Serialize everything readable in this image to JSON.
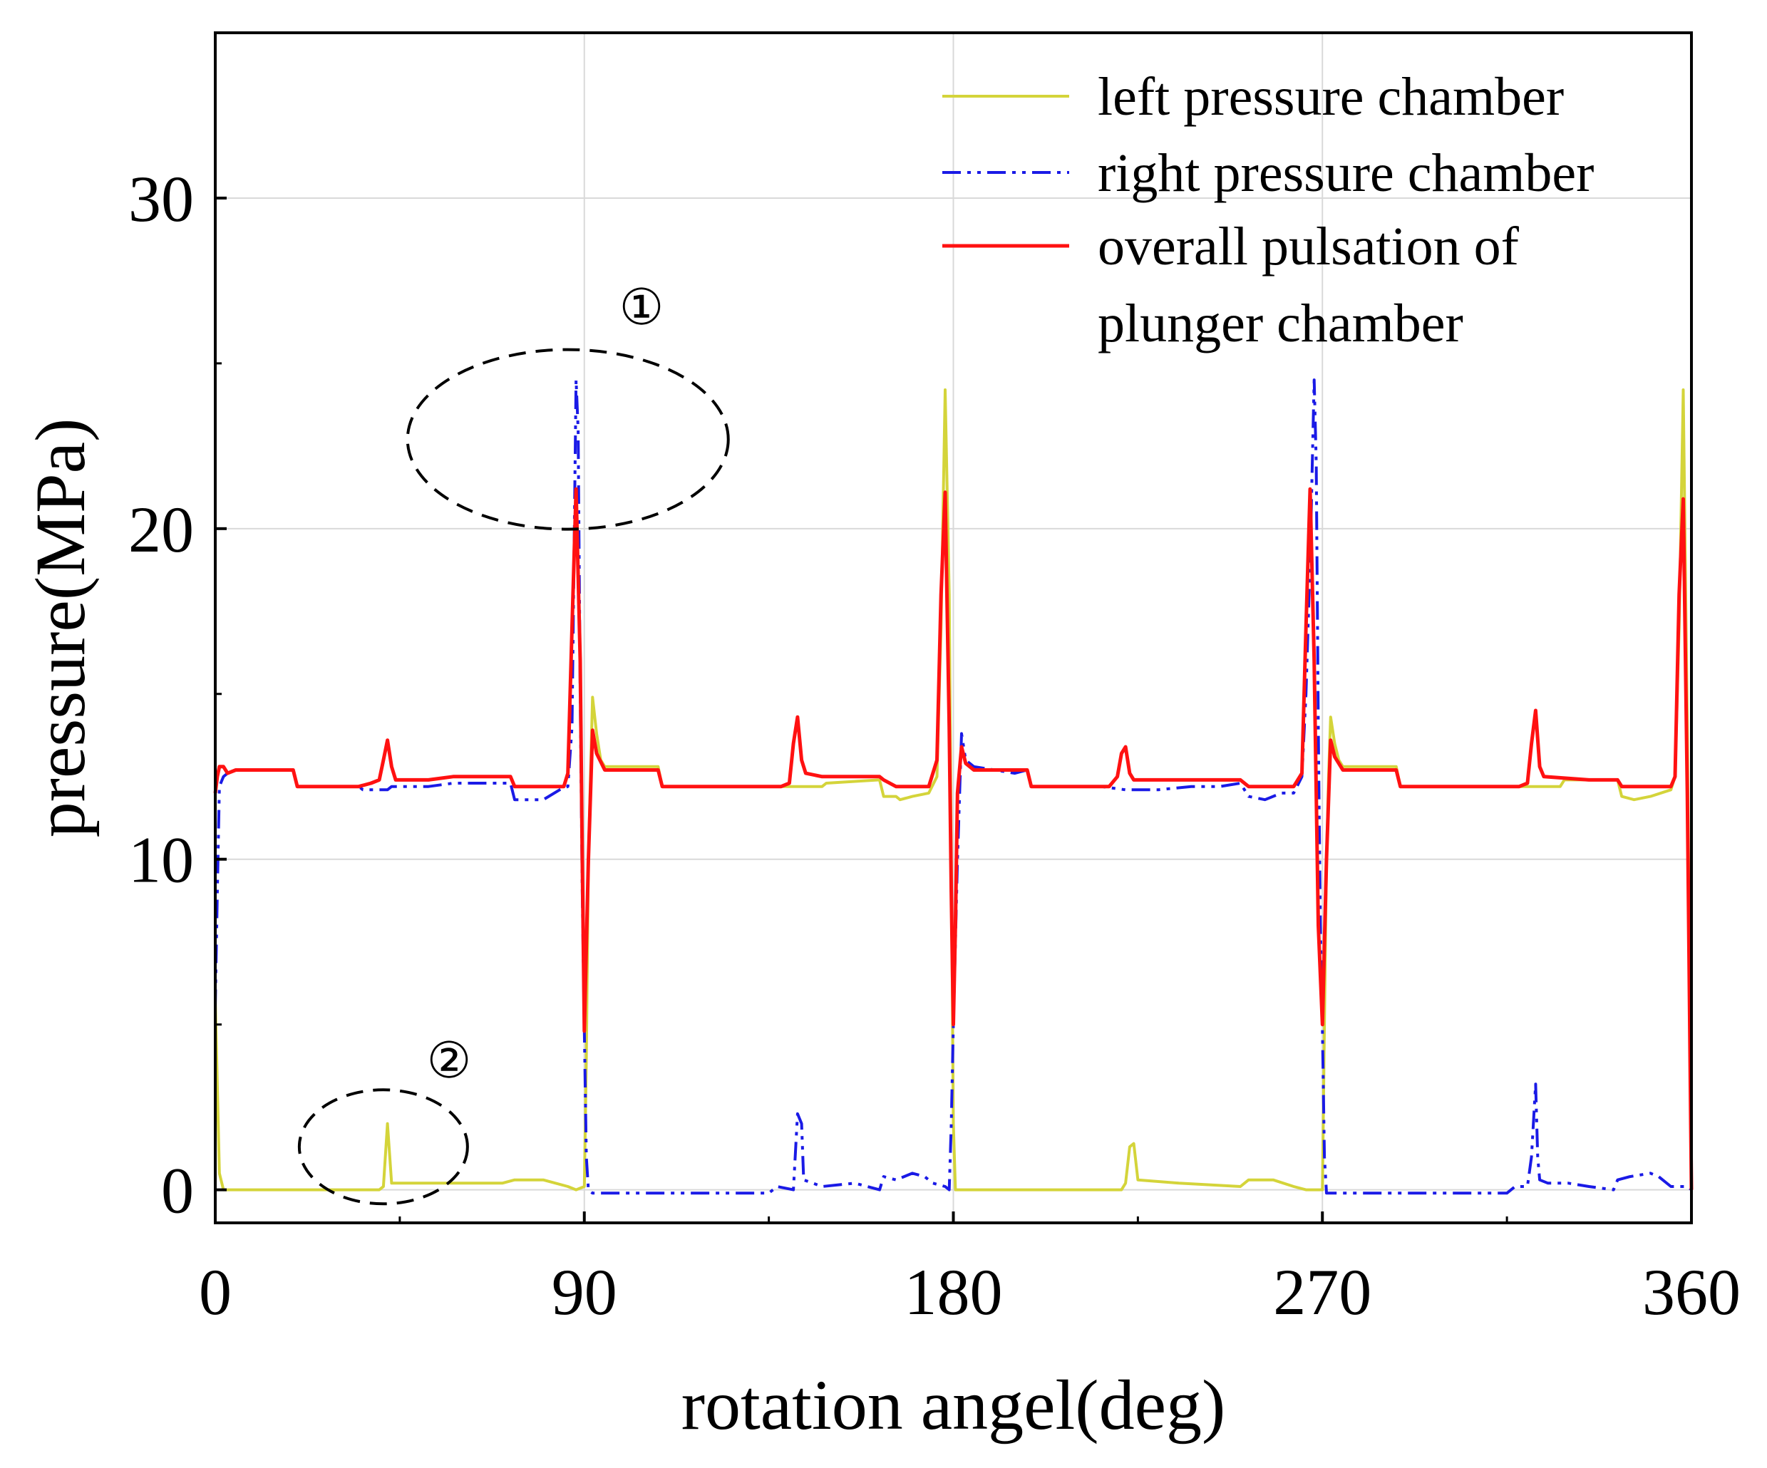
{
  "chart_data": {
    "type": "line",
    "title": "",
    "xlabel": "rotation angel(deg)",
    "ylabel": "pressure(MPa)",
    "xlim": [
      0,
      360
    ],
    "ylim": [
      -1,
      35
    ],
    "xticks": [
      0,
      90,
      180,
      270,
      360
    ],
    "xtick_labels": [
      "0",
      "90",
      "180",
      "270",
      "360"
    ],
    "yticks": [
      0,
      10,
      20,
      30
    ],
    "ytick_labels": [
      "0",
      "10",
      "20",
      "30"
    ],
    "grid": true,
    "legend_position": "top-right",
    "annotations": [
      {
        "label": "①",
        "x_center": 86,
        "y_center": 22.7
      },
      {
        "label": "②",
        "x_center": 41,
        "y_center": 1.3
      }
    ],
    "series": [
      {
        "name": "left pressure chamber",
        "color": "#d4d43a",
        "style": "solid",
        "points": [
          [
            0,
            5.8
          ],
          [
            1,
            0.5
          ],
          [
            2,
            0
          ],
          [
            40,
            0
          ],
          [
            41,
            0.1
          ],
          [
            42,
            2
          ],
          [
            43,
            0.2
          ],
          [
            70,
            0.2
          ],
          [
            73,
            0.3
          ],
          [
            80,
            0.3
          ],
          [
            86,
            0.1
          ],
          [
            88,
            0
          ],
          [
            90,
            0.1
          ],
          [
            90.5,
            4
          ],
          [
            91,
            10
          ],
          [
            91.5,
            12.5
          ],
          [
            92,
            14.9
          ],
          [
            93,
            13.8
          ],
          [
            94,
            13
          ],
          [
            95,
            12.8
          ],
          [
            108,
            12.8
          ],
          [
            109,
            12.2
          ],
          [
            148,
            12.2
          ],
          [
            149,
            12.3
          ],
          [
            162,
            12.4
          ],
          [
            163,
            11.9
          ],
          [
            166,
            11.9
          ],
          [
            167,
            11.8
          ],
          [
            170,
            11.9
          ],
          [
            174,
            12
          ],
          [
            176,
            12.5
          ],
          [
            177,
            17
          ],
          [
            178,
            24.2
          ],
          [
            179,
            18
          ],
          [
            179.5,
            10
          ],
          [
            180,
            2
          ],
          [
            180.5,
            0
          ],
          [
            221,
            0
          ],
          [
            222,
            0.2
          ],
          [
            223,
            1.3
          ],
          [
            224,
            1.4
          ],
          [
            225,
            0.3
          ],
          [
            235,
            0.2
          ],
          [
            250,
            0.1
          ],
          [
            252,
            0.3
          ],
          [
            258,
            0.3
          ],
          [
            263,
            0.1
          ],
          [
            266,
            0
          ],
          [
            270,
            0
          ],
          [
            270.5,
            5
          ],
          [
            271,
            10
          ],
          [
            271.5,
            12.5
          ],
          [
            272,
            14.3
          ],
          [
            273,
            13.5
          ],
          [
            274,
            13
          ],
          [
            275,
            12.8
          ],
          [
            288,
            12.8
          ],
          [
            289,
            12.2
          ],
          [
            328,
            12.2
          ],
          [
            329,
            12.4
          ],
          [
            342,
            12.4
          ],
          [
            343,
            11.9
          ],
          [
            346,
            11.8
          ],
          [
            350,
            11.9
          ],
          [
            355,
            12.1
          ],
          [
            356,
            12.5
          ],
          [
            357,
            17
          ],
          [
            358,
            24.2
          ],
          [
            359,
            14
          ],
          [
            360,
            0
          ]
        ]
      },
      {
        "name": "right pressure chamber",
        "color": "#1a1ae6",
        "style": "dashdot",
        "points": [
          [
            0,
            5.5
          ],
          [
            0.5,
            9
          ],
          [
            1,
            12.2
          ],
          [
            2,
            12.5
          ],
          [
            3,
            12.6
          ],
          [
            5,
            12.7
          ],
          [
            19,
            12.7
          ],
          [
            20,
            12.2
          ],
          [
            35,
            12.2
          ],
          [
            36,
            12.1
          ],
          [
            42,
            12.1
          ],
          [
            43,
            12.2
          ],
          [
            52,
            12.2
          ],
          [
            58,
            12.3
          ],
          [
            72,
            12.3
          ],
          [
            73,
            11.8
          ],
          [
            80,
            11.8
          ],
          [
            84,
            12.1
          ],
          [
            86,
            12.2
          ],
          [
            87,
            14
          ],
          [
            88,
            24.5
          ],
          [
            88.5,
            23
          ],
          [
            89,
            15
          ],
          [
            89.5,
            9
          ],
          [
            90,
            4.8
          ],
          [
            90.5,
            1
          ],
          [
            91,
            0
          ],
          [
            92,
            -0.1
          ],
          [
            135,
            -0.1
          ],
          [
            137,
            0.1
          ],
          [
            141,
            0
          ],
          [
            142,
            2.3
          ],
          [
            143,
            2
          ],
          [
            143.5,
            0.3
          ],
          [
            148,
            0.1
          ],
          [
            156,
            0.2
          ],
          [
            162,
            0
          ],
          [
            163,
            0.4
          ],
          [
            166,
            0.3
          ],
          [
            170,
            0.5
          ],
          [
            173,
            0.4
          ],
          [
            175,
            0.2
          ],
          [
            178,
            0.1
          ],
          [
            179,
            0
          ],
          [
            179.5,
            2
          ],
          [
            180,
            5
          ],
          [
            181,
            10
          ],
          [
            182,
            13.8
          ],
          [
            183,
            13
          ],
          [
            185,
            12.8
          ],
          [
            195,
            12.6
          ],
          [
            198,
            12.7
          ],
          [
            199,
            12.2
          ],
          [
            216,
            12.2
          ],
          [
            222,
            12.1
          ],
          [
            230,
            12.1
          ],
          [
            238,
            12.2
          ],
          [
            245,
            12.2
          ],
          [
            250,
            12.3
          ],
          [
            252,
            11.9
          ],
          [
            256,
            11.8
          ],
          [
            260,
            12
          ],
          [
            263,
            12
          ],
          [
            265,
            12.5
          ],
          [
            266,
            15
          ],
          [
            267,
            19
          ],
          [
            268,
            24.5
          ],
          [
            268.5,
            22
          ],
          [
            269,
            14
          ],
          [
            269.5,
            8
          ],
          [
            270,
            4.8
          ],
          [
            270.5,
            1
          ],
          [
            271,
            -0.1
          ],
          [
            315,
            -0.1
          ],
          [
            317,
            0.1
          ],
          [
            320,
            0.1
          ],
          [
            321,
            1
          ],
          [
            322,
            3.2
          ],
          [
            322.5,
            1
          ],
          [
            323,
            0.3
          ],
          [
            325,
            0.2
          ],
          [
            330,
            0.2
          ],
          [
            335,
            0.1
          ],
          [
            341,
            0
          ],
          [
            342,
            0.3
          ],
          [
            345,
            0.4
          ],
          [
            350,
            0.5
          ],
          [
            352,
            0.4
          ],
          [
            355,
            0.1
          ],
          [
            359,
            0.1
          ],
          [
            360,
            0
          ]
        ]
      },
      {
        "name": "overall pulsation of plunger chamber",
        "legend_lines": [
          "overall pulsation of",
          "plunger chamber"
        ],
        "color": "#ff1111",
        "style": "solid",
        "points": [
          [
            0,
            12
          ],
          [
            0.5,
            12.5
          ],
          [
            1,
            12.8
          ],
          [
            2,
            12.8
          ],
          [
            3,
            12.6
          ],
          [
            5,
            12.7
          ],
          [
            19,
            12.7
          ],
          [
            20,
            12.2
          ],
          [
            35,
            12.2
          ],
          [
            38,
            12.3
          ],
          [
            40,
            12.4
          ],
          [
            41,
            13
          ],
          [
            42,
            13.6
          ],
          [
            43,
            12.8
          ],
          [
            44,
            12.4
          ],
          [
            52,
            12.4
          ],
          [
            58,
            12.5
          ],
          [
            72,
            12.5
          ],
          [
            73,
            12.2
          ],
          [
            85,
            12.2
          ],
          [
            86,
            12.6
          ],
          [
            87,
            17
          ],
          [
            88,
            21.2
          ],
          [
            89,
            16
          ],
          [
            89.5,
            10
          ],
          [
            90,
            4.8
          ],
          [
            91,
            10
          ],
          [
            92,
            13.9
          ],
          [
            93,
            13.2
          ],
          [
            95,
            12.7
          ],
          [
            108,
            12.7
          ],
          [
            109,
            12.2
          ],
          [
            138,
            12.2
          ],
          [
            140,
            12.3
          ],
          [
            141,
            13.5
          ],
          [
            142,
            14.3
          ],
          [
            143,
            13
          ],
          [
            144,
            12.6
          ],
          [
            148,
            12.5
          ],
          [
            162,
            12.5
          ],
          [
            163,
            12.4
          ],
          [
            166,
            12.2
          ],
          [
            170,
            12.2
          ],
          [
            174,
            12.2
          ],
          [
            176,
            13
          ],
          [
            177,
            18
          ],
          [
            178,
            21.1
          ],
          [
            179,
            14
          ],
          [
            179.5,
            9
          ],
          [
            180,
            5
          ],
          [
            180.5,
            8
          ],
          [
            181,
            12
          ],
          [
            182,
            13.4
          ],
          [
            183,
            12.9
          ],
          [
            185,
            12.7
          ],
          [
            198,
            12.7
          ],
          [
            199,
            12.2
          ],
          [
            218,
            12.2
          ],
          [
            220,
            12.5
          ],
          [
            221,
            13.2
          ],
          [
            222,
            13.4
          ],
          [
            223,
            12.6
          ],
          [
            224,
            12.4
          ],
          [
            235,
            12.4
          ],
          [
            250,
            12.4
          ],
          [
            252,
            12.2
          ],
          [
            263,
            12.2
          ],
          [
            265,
            12.6
          ],
          [
            266,
            17
          ],
          [
            267,
            21.2
          ],
          [
            268,
            16
          ],
          [
            269,
            8
          ],
          [
            270,
            5
          ],
          [
            271,
            10
          ],
          [
            272,
            13.6
          ],
          [
            273,
            13.1
          ],
          [
            275,
            12.7
          ],
          [
            288,
            12.7
          ],
          [
            289,
            12.2
          ],
          [
            318,
            12.2
          ],
          [
            320,
            12.3
          ],
          [
            321,
            13.5
          ],
          [
            322,
            14.5
          ],
          [
            323,
            12.8
          ],
          [
            324,
            12.5
          ],
          [
            335,
            12.4
          ],
          [
            342,
            12.4
          ],
          [
            343,
            12.2
          ],
          [
            355,
            12.2
          ],
          [
            356,
            12.5
          ],
          [
            357,
            18
          ],
          [
            358,
            20.9
          ],
          [
            359,
            12
          ],
          [
            360,
            0
          ]
        ]
      }
    ]
  }
}
